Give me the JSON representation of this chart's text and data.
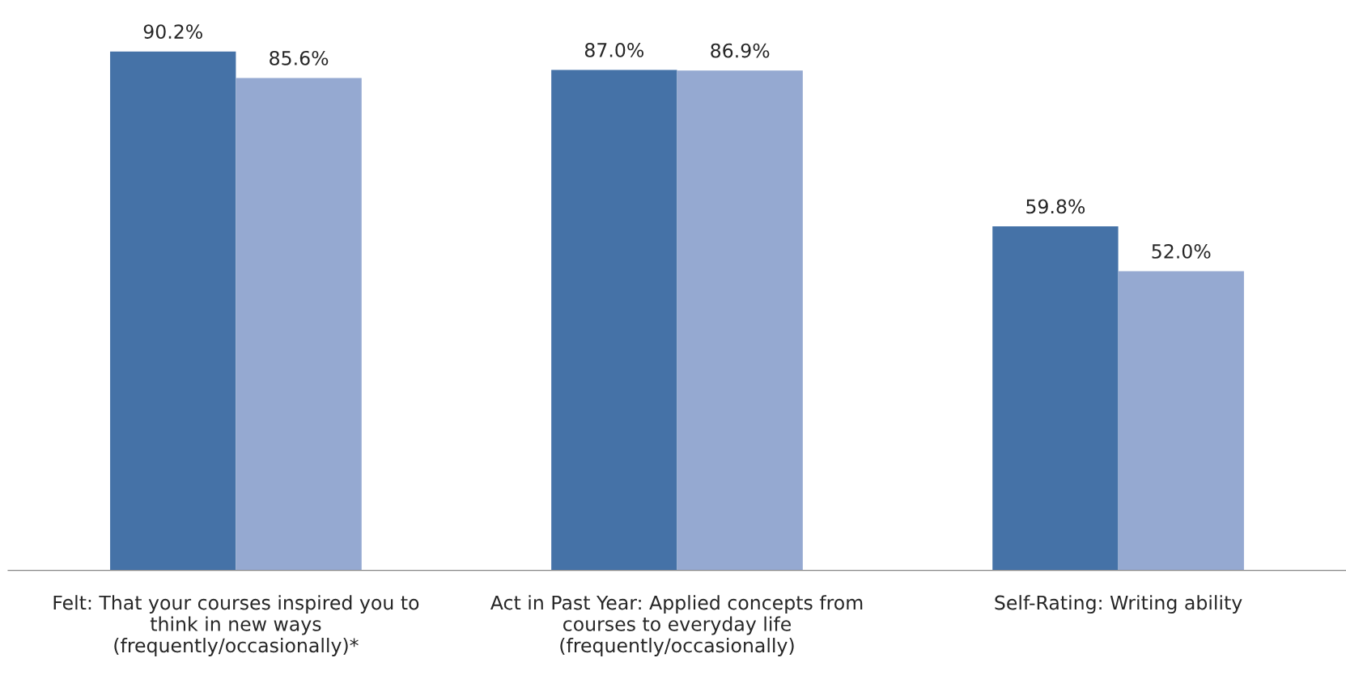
{
  "chart_data": {
    "type": "bar",
    "categories": [
      "Felt: That your courses inspired you to\nthink in new ways\n(frequently/occasionally)*",
      "Act in Past Year: Applied concepts from\ncourses to everyday life\n(frequently/occasionally)",
      "Self-Rating: Writing ability"
    ],
    "series": [
      {
        "color": "#4572a7",
        "values": [
          90.2,
          87.0,
          59.8
        ],
        "value_labels": [
          "90.2%",
          "87.0%",
          "59.8%"
        ]
      },
      {
        "color": "#95a9d1",
        "values": [
          85.6,
          86.9,
          52.0
        ],
        "value_labels": [
          "85.6%",
          "86.9%",
          "52.0%"
        ]
      }
    ],
    "grid": false,
    "legend": false
  }
}
